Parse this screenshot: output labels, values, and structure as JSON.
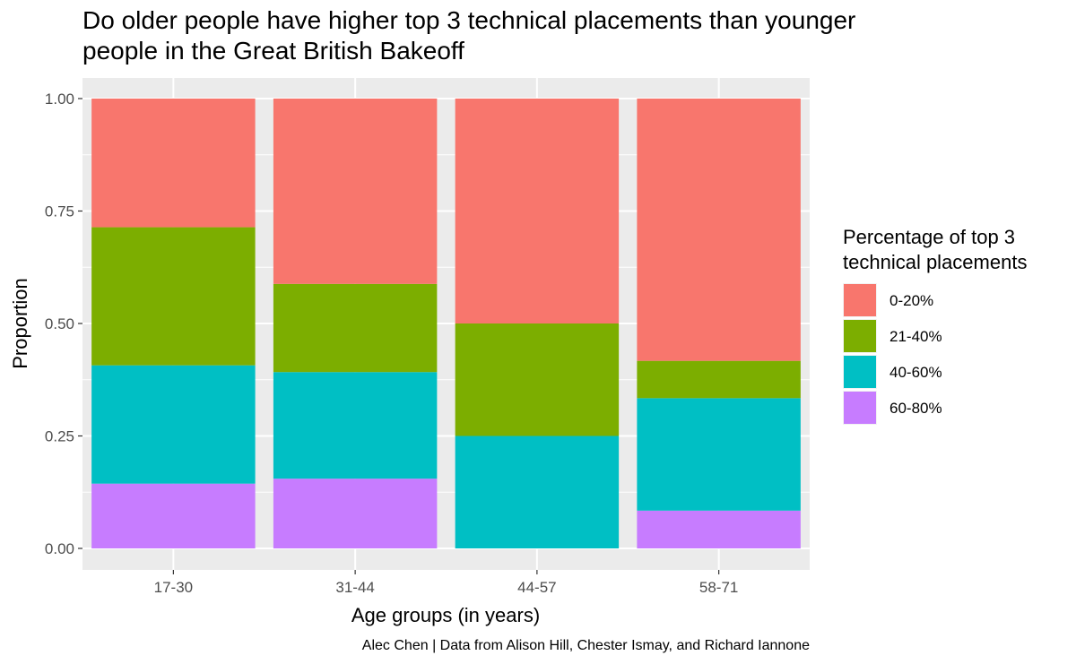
{
  "chart_data": {
    "type": "bar",
    "stacked": true,
    "title": "Do older people have higher top 3 technical placements than younger people in the Great British Bakeoff",
    "xlabel": "Age groups (in years)",
    "ylabel": "Proportion",
    "caption": "Alec Chen | Data from Alison Hill, Chester Ismay, and Richard Iannone",
    "categories": [
      "17-30",
      "31-44",
      "44-57",
      "58-71"
    ],
    "ylim": [
      0,
      1
    ],
    "yticks": [
      "0.00",
      "0.25",
      "0.50",
      "0.75",
      "1.00"
    ],
    "ytick_values": [
      0,
      0.25,
      0.5,
      0.75,
      1.0
    ],
    "grid": true,
    "legend": {
      "title_lines": [
        "Percentage of top 3",
        "technical placements"
      ],
      "placement": "right"
    },
    "series": [
      {
        "name": "0-20%",
        "color": "#F8766D",
        "values": [
          0.286,
          0.412,
          0.5,
          0.583
        ]
      },
      {
        "name": "21-40%",
        "color": "#7CAE00",
        "values": [
          0.307,
          0.196,
          0.25,
          0.083
        ]
      },
      {
        "name": "40-60%",
        "color": "#00BFC4",
        "values": [
          0.263,
          0.237,
          0.25,
          0.25
        ]
      },
      {
        "name": "60-80%",
        "color": "#C77CFF",
        "values": [
          0.144,
          0.155,
          0.0,
          0.084
        ]
      }
    ]
  }
}
